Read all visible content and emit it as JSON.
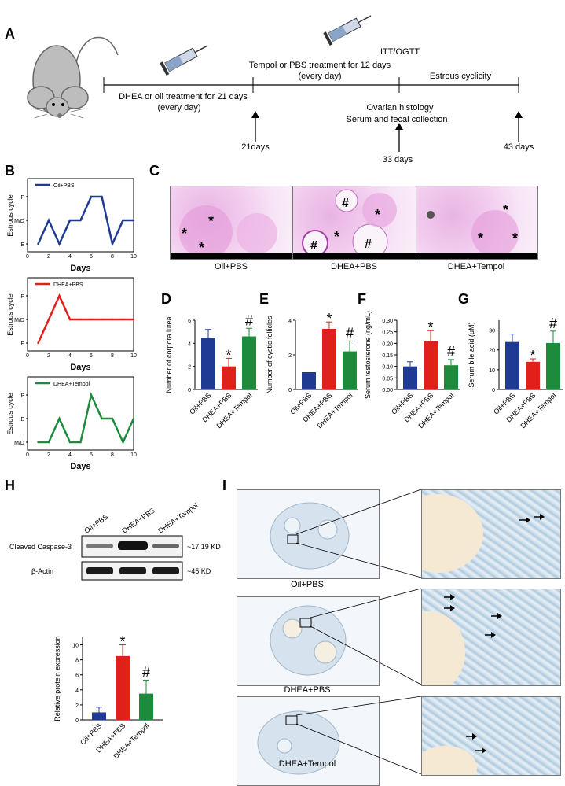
{
  "panels": {
    "A": "A",
    "B": "B",
    "C": "C",
    "D": "D",
    "E": "E",
    "F": "F",
    "G": "G",
    "H": "H",
    "I": "I"
  },
  "timeline": {
    "phase1": "DHEA or oil treatment for 21 days",
    "phase1_sub": "(every day)",
    "phase2": "Tempol or PBS treatment for 12 days",
    "phase2_sub": "(every day)",
    "phase3": "Estrous cyclicity",
    "itt": "ITT/OGTT",
    "ovarian": "Ovarian histology",
    "serum": "Serum and fecal collection",
    "day21": "21days",
    "day33": "33 days",
    "day43": "43 days"
  },
  "estrous": {
    "ylabel": "Estrous cycle",
    "xlabel": "Days",
    "xticks": [
      "0",
      "2",
      "4",
      "6",
      "8",
      "10"
    ],
    "plots": [
      {
        "legend": "Oil+PBS",
        "color": "#1f3a93",
        "yticks": [
          "P",
          "M/D",
          "E"
        ],
        "levels": [
          0,
          1,
          0,
          1,
          1,
          2,
          2,
          0,
          1,
          1
        ]
      },
      {
        "legend": "DHEA+PBS",
        "color": "#e0201b",
        "yticks": [
          "P",
          "M/D",
          "E"
        ],
        "levels": [
          0,
          1,
          2,
          1,
          1,
          1,
          1,
          1,
          1,
          1
        ]
      },
      {
        "legend": "DHEA+Tempol",
        "color": "#1e8a3c",
        "yticks": [
          "P",
          "E",
          "M/D"
        ],
        "levels": [
          0,
          0,
          1,
          0,
          0,
          2,
          1,
          1,
          0,
          1
        ]
      }
    ]
  },
  "histology": {
    "labels": [
      "Oil+PBS",
      "DHEA+PBS",
      "DHEA+Tempol"
    ]
  },
  "bars": {
    "groups": [
      "Oil+PBS",
      "DHEA+PBS",
      "DHEA+Tempol"
    ],
    "colors": [
      "#1f3a93",
      "#e0201b",
      "#1e8a3c"
    ],
    "D": {
      "ylabel": "Number of corpora lutea",
      "ymax": 6,
      "yticks": [
        "0",
        "2",
        "4",
        "6"
      ],
      "tickvals": [
        0,
        2,
        4,
        6
      ],
      "values": [
        4.5,
        2.0,
        4.6
      ],
      "errors": [
        0.7,
        0.7,
        0.7
      ],
      "marks": [
        "",
        "*",
        "#"
      ]
    },
    "E": {
      "ylabel": "Number of cystic follicles",
      "ymax": 4,
      "yticks": [
        "0",
        "2",
        "4"
      ],
      "tickvals": [
        0,
        2,
        4
      ],
      "values": [
        1.0,
        3.5,
        2.2
      ],
      "errors": [
        0.0,
        0.4,
        0.6
      ],
      "marks": [
        "",
        "*",
        "#"
      ]
    },
    "F": {
      "ylabel": "Serum testosterone (ng/mL)",
      "ymax": 0.3,
      "yticks": [
        "0.00",
        "0.05",
        "0.10",
        "0.15",
        "0.20",
        "0.25",
        "0.30"
      ],
      "tickvals": [
        0,
        0.05,
        0.1,
        0.15,
        0.2,
        0.25,
        0.3
      ],
      "values": [
        0.1,
        0.21,
        0.105
      ],
      "errors": [
        0.02,
        0.045,
        0.025
      ],
      "marks": [
        "",
        "*",
        "#"
      ]
    },
    "G": {
      "ylabel": "Serum bile acid (μM)",
      "ymax": 35,
      "yticks": [
        "0",
        "10",
        "20",
        "30"
      ],
      "tickvals": [
        0,
        10,
        20,
        30
      ],
      "values": [
        24,
        14,
        23.5
      ],
      "errors": [
        4,
        1.5,
        6
      ],
      "marks": [
        "",
        "*",
        "#"
      ]
    },
    "H": {
      "ylabel": "Relative protein expression",
      "ymax": 11,
      "yticks": [
        "0",
        "2",
        "4",
        "6",
        "8",
        "10"
      ],
      "tickvals": [
        0,
        2,
        4,
        6,
        8,
        10
      ],
      "values": [
        1.0,
        8.5,
        3.5
      ],
      "errors": [
        0.7,
        1.5,
        1.8
      ],
      "marks": [
        "",
        "*",
        "#"
      ]
    }
  },
  "western": {
    "lanes": [
      "Oil+PBS",
      "DHEA+PBS",
      "DHEA+Tempol"
    ],
    "row1": "Cleaved Caspase-3",
    "row1_kd": "~17,19 KD",
    "row2": "β-Actin",
    "row2_kd": "~45 KD"
  },
  "tunel": {
    "labels": [
      "Oil+PBS",
      "DHEA+PBS",
      "DHEA+Tempol"
    ]
  }
}
